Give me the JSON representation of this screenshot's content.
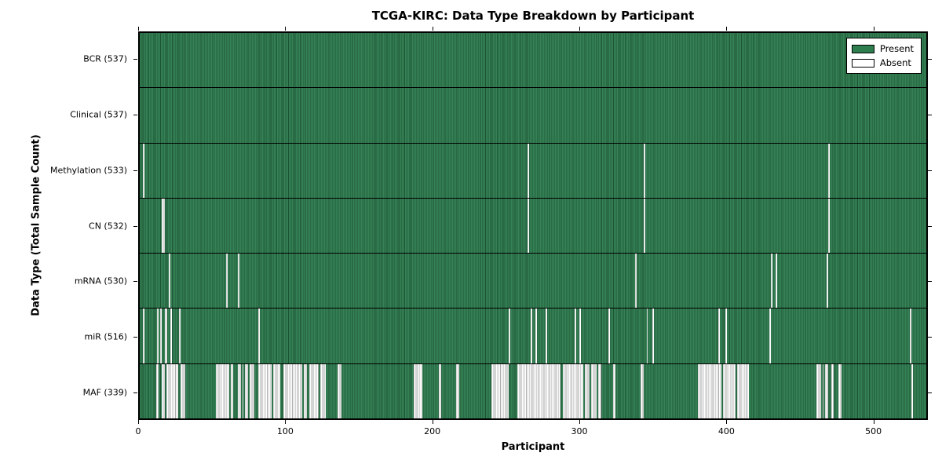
{
  "chart_data": {
    "type": "heatmap",
    "title": "TCGA-KIRC: Data Type Breakdown by Participant",
    "xlabel": "Participant",
    "ylabel": "Data Type (Total Sample Count)",
    "xlim": [
      0,
      537
    ],
    "x_ticks": [
      0,
      100,
      200,
      300,
      400,
      500
    ],
    "n_participants": 537,
    "grid": false,
    "legend_position": "upper right",
    "colors": {
      "present": "#2e7d4f",
      "present_edge": "#0a2817",
      "absent": "#ffffff",
      "absent_edge": "#a9a9a9",
      "border": "#000000",
      "background": "#ffffff"
    },
    "legend": [
      {
        "label": "Present",
        "color": "#2e7d4f"
      },
      {
        "label": "Absent",
        "color": "#ffffff"
      }
    ],
    "rows": [
      {
        "label": "BCR (537)",
        "data_type": "BCR",
        "present_count": 537,
        "absent_count": 0,
        "absent_ranges": []
      },
      {
        "label": "Clinical (537)",
        "data_type": "Clinical",
        "present_count": 537,
        "absent_count": 0,
        "absent_ranges": []
      },
      {
        "label": "Methylation (533)",
        "data_type": "Methylation",
        "present_count": 533,
        "absent_count": 4,
        "absent_ranges": [
          [
            2,
            3
          ],
          [
            265,
            266
          ],
          [
            344,
            345
          ],
          [
            470,
            471
          ]
        ]
      },
      {
        "label": "CN (532)",
        "data_type": "CN",
        "present_count": 532,
        "absent_count": 5,
        "absent_ranges": [
          [
            15,
            17
          ],
          [
            265,
            266
          ],
          [
            344,
            345
          ],
          [
            470,
            471
          ]
        ]
      },
      {
        "label": "mRNA (530)",
        "data_type": "mRNA",
        "present_count": 530,
        "absent_count": 7,
        "absent_ranges": [
          [
            20,
            21
          ],
          [
            59,
            60
          ],
          [
            67,
            68
          ],
          [
            338,
            339
          ],
          [
            431,
            432
          ],
          [
            434,
            435
          ],
          [
            469,
            470
          ]
        ]
      },
      {
        "label": "miR (516)",
        "data_type": "miR",
        "present_count": 516,
        "absent_count": 21,
        "absent_ranges": [
          [
            2,
            3
          ],
          [
            12,
            13
          ],
          [
            14,
            15
          ],
          [
            17,
            19
          ],
          [
            21,
            22
          ],
          [
            27,
            28
          ],
          [
            81,
            82
          ],
          [
            252,
            253
          ],
          [
            267,
            268
          ],
          [
            270,
            271
          ],
          [
            277,
            278
          ],
          [
            297,
            298
          ],
          [
            300,
            301
          ],
          [
            320,
            321
          ],
          [
            346,
            347
          ],
          [
            350,
            351
          ],
          [
            395,
            396
          ],
          [
            400,
            401
          ],
          [
            430,
            431
          ],
          [
            526,
            527
          ]
        ]
      },
      {
        "label": "MAF (339)",
        "data_type": "MAF",
        "present_count": 339,
        "absent_count": 198,
        "absent_ranges": [
          [
            11,
            13
          ],
          [
            15,
            17
          ],
          [
            18,
            26
          ],
          [
            28,
            31
          ],
          [
            52,
            61
          ],
          [
            62,
            64
          ],
          [
            67,
            69
          ],
          [
            70,
            71
          ],
          [
            72,
            74
          ],
          [
            75,
            78
          ],
          [
            81,
            90
          ],
          [
            91,
            96
          ],
          [
            98,
            108
          ],
          [
            108,
            111
          ],
          [
            112,
            114
          ],
          [
            116,
            122
          ],
          [
            123,
            127
          ],
          [
            135,
            138
          ],
          [
            187,
            193
          ],
          [
            204,
            206
          ],
          [
            216,
            218
          ],
          [
            240,
            252
          ],
          [
            258,
            287
          ],
          [
            289,
            303
          ],
          [
            304,
            307
          ],
          [
            308,
            312
          ],
          [
            313,
            315
          ],
          [
            323,
            325
          ],
          [
            342,
            344
          ],
          [
            381,
            397
          ],
          [
            398,
            407
          ],
          [
            408,
            416
          ],
          [
            462,
            465
          ],
          [
            466,
            467
          ],
          [
            468,
            470
          ],
          [
            472,
            474
          ],
          [
            477,
            479
          ],
          [
            527,
            528
          ]
        ]
      }
    ]
  }
}
